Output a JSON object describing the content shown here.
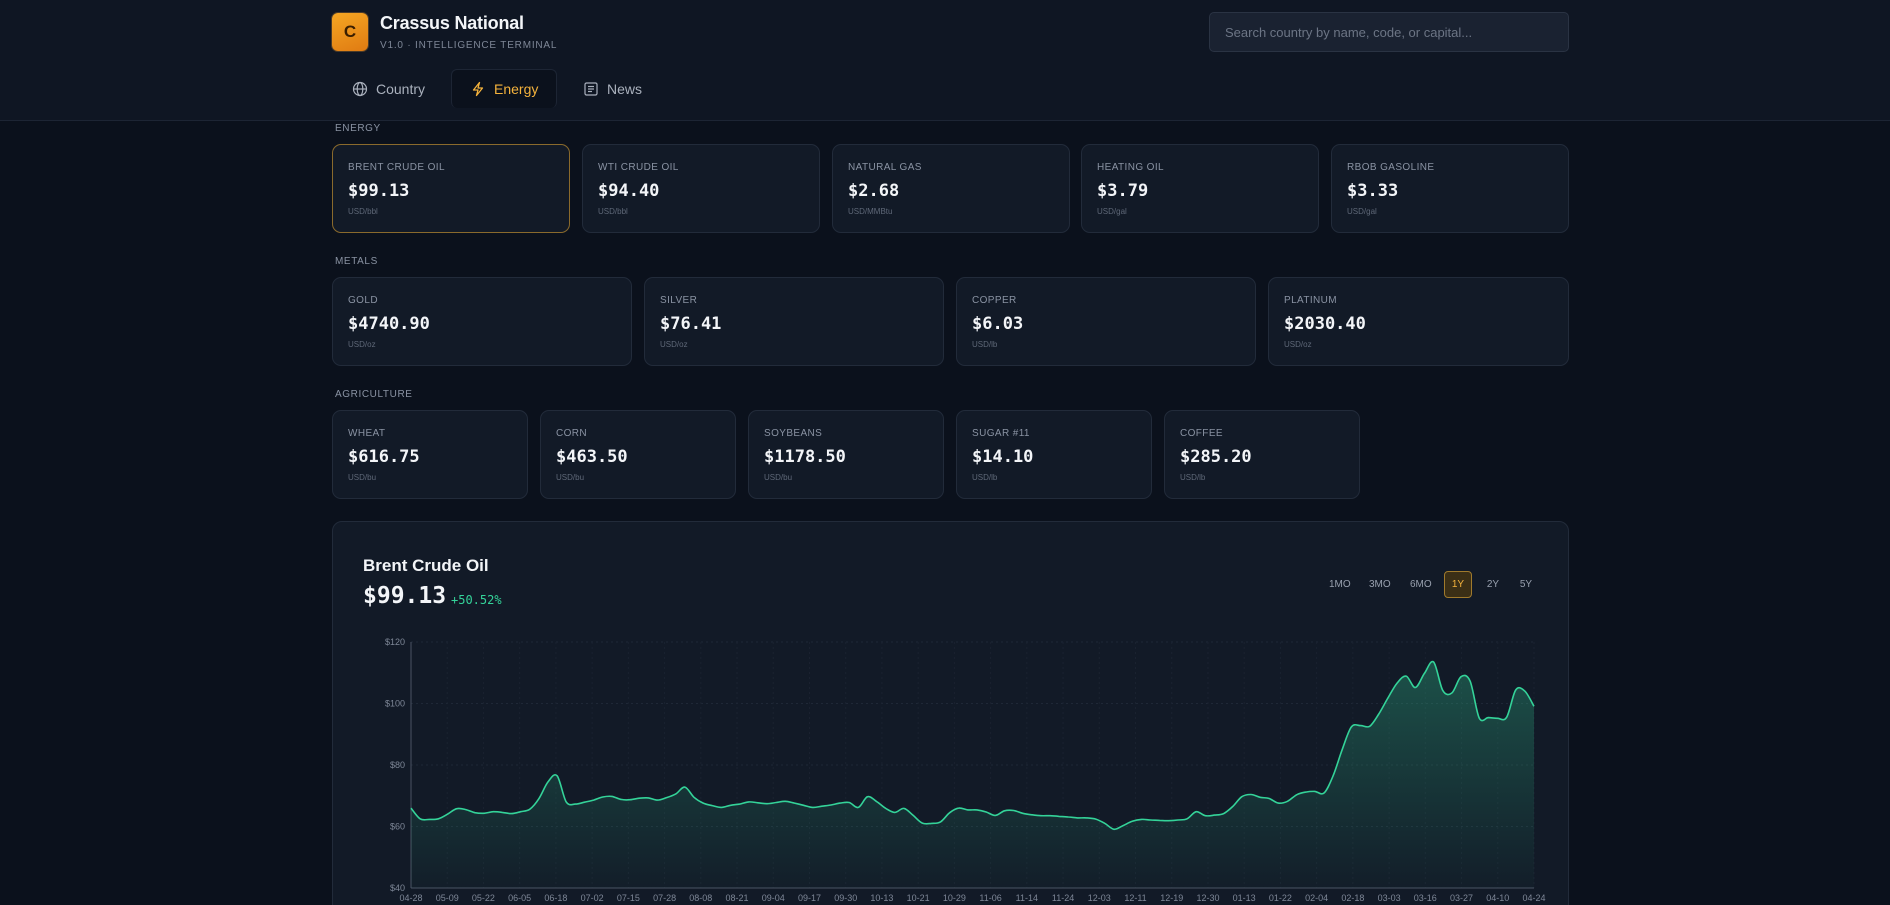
{
  "brand": {
    "logo_letter": "C",
    "name": "Crassus National",
    "subtitle": "V1.0 · INTELLIGENCE TERMINAL"
  },
  "search": {
    "placeholder": "Search country by name, code, or capital..."
  },
  "tabs": [
    {
      "label": "Country",
      "icon": "globe-icon",
      "active": false
    },
    {
      "label": "Energy",
      "icon": "lightning-icon",
      "active": true
    },
    {
      "label": "News",
      "icon": "newspaper-icon",
      "active": false
    }
  ],
  "sections": {
    "energy": {
      "label": "ENERGY",
      "items": [
        {
          "name": "BRENT CRUDE OIL",
          "price": "$99.13",
          "unit": "USD/bbl",
          "selected": true
        },
        {
          "name": "WTI CRUDE OIL",
          "price": "$94.40",
          "unit": "USD/bbl"
        },
        {
          "name": "NATURAL GAS",
          "price": "$2.68",
          "unit": "USD/MMBtu"
        },
        {
          "name": "HEATING OIL",
          "price": "$3.79",
          "unit": "USD/gal"
        },
        {
          "name": "RBOB GASOLINE",
          "price": "$3.33",
          "unit": "USD/gal"
        }
      ]
    },
    "metals": {
      "label": "METALS",
      "items": [
        {
          "name": "GOLD",
          "price": "$4740.90",
          "unit": "USD/oz"
        },
        {
          "name": "SILVER",
          "price": "$76.41",
          "unit": "USD/oz"
        },
        {
          "name": "COPPER",
          "price": "$6.03",
          "unit": "USD/lb"
        },
        {
          "name": "PLATINUM",
          "price": "$2030.40",
          "unit": "USD/oz"
        }
      ]
    },
    "agriculture": {
      "label": "AGRICULTURE",
      "items": [
        {
          "name": "WHEAT",
          "price": "$616.75",
          "unit": "USD/bu"
        },
        {
          "name": "CORN",
          "price": "$463.50",
          "unit": "USD/bu"
        },
        {
          "name": "SOYBEANS",
          "price": "$1178.50",
          "unit": "USD/bu"
        },
        {
          "name": "SUGAR #11",
          "price": "$14.10",
          "unit": "USD/lb"
        },
        {
          "name": "COFFEE",
          "price": "$285.20",
          "unit": "USD/lb"
        }
      ]
    }
  },
  "chart_panel": {
    "title": "Brent Crude Oil",
    "price": "$99.13",
    "change": "+50.52%",
    "ranges": [
      "1MO",
      "3MO",
      "6MO",
      "1Y",
      "2Y",
      "5Y"
    ],
    "active_range": "1Y"
  },
  "colors": {
    "accent": "#f4b23c",
    "line": "#34d399",
    "background": "#0b111c",
    "card": "#121a27"
  },
  "chart_data": {
    "type": "area",
    "title": "",
    "xlabel": "",
    "ylabel": "",
    "ylim": [
      40,
      120
    ],
    "yticks": [
      "$120",
      "$100",
      "$80",
      "$60",
      "$40"
    ],
    "grid": true,
    "legend": "none",
    "x_tick_labels": [
      "04-28",
      "05-09",
      "05-22",
      "06-05",
      "06-18",
      "07-02",
      "07-15",
      "07-28",
      "08-08",
      "08-21",
      "09-04",
      "09-17",
      "09-30",
      "10-13",
      "10-21",
      "10-29",
      "11-06",
      "11-14",
      "11-24",
      "12-03",
      "12-11",
      "12-19",
      "12-30",
      "01-13",
      "01-22",
      "02-04",
      "02-18",
      "03-03",
      "03-16",
      "03-27",
      "04-10",
      "04-24"
    ],
    "series": [
      {
        "values": [
          66,
          62.5,
          62.3,
          62.5,
          64,
          65.8,
          65.5,
          64.5,
          64.3,
          64.8,
          64.6,
          64.2,
          64.8,
          65.6,
          69,
          74.5,
          76.5,
          68,
          67.3,
          67.9,
          68.6,
          69.6,
          69.8,
          68.8,
          68.7,
          69.2,
          69.3,
          68.6,
          69.4,
          70.6,
          72.8,
          69.5,
          67.6,
          66.8,
          66.2,
          66.9,
          67.3,
          68,
          67.7,
          67.4,
          67.8,
          68.2,
          67.6,
          66.9,
          66.2,
          66.6,
          67,
          67.6,
          67.8,
          66.2,
          69.7,
          68.1,
          65.9,
          64.6,
          65.9,
          63.6,
          61.1,
          61,
          61.5,
          64.5,
          66,
          65.4,
          65.4,
          64.7,
          63.6,
          65.1,
          65.2,
          64.3,
          63.8,
          63.5,
          63.5,
          63.3,
          63.1,
          62.8,
          62.8,
          62.4,
          61,
          59.1,
          60.3,
          61.7,
          62.3,
          62.1,
          62,
          61.9,
          62.1,
          62.5,
          64.8,
          63.5,
          63.7,
          64.2,
          66.5,
          69.7,
          70.4,
          69.5,
          69.1,
          67.6,
          68.2,
          70.3,
          71.2,
          71.4,
          70.9,
          76.5,
          85.1,
          92.4,
          92.8,
          92.6,
          96.6,
          101.8,
          106.6,
          108.9,
          105.2,
          109.8,
          113.5,
          104.3,
          103.4,
          108.7,
          107.3,
          95.3,
          95.4,
          95.2,
          95.5,
          104.4,
          104,
          99.1
        ]
      }
    ]
  }
}
